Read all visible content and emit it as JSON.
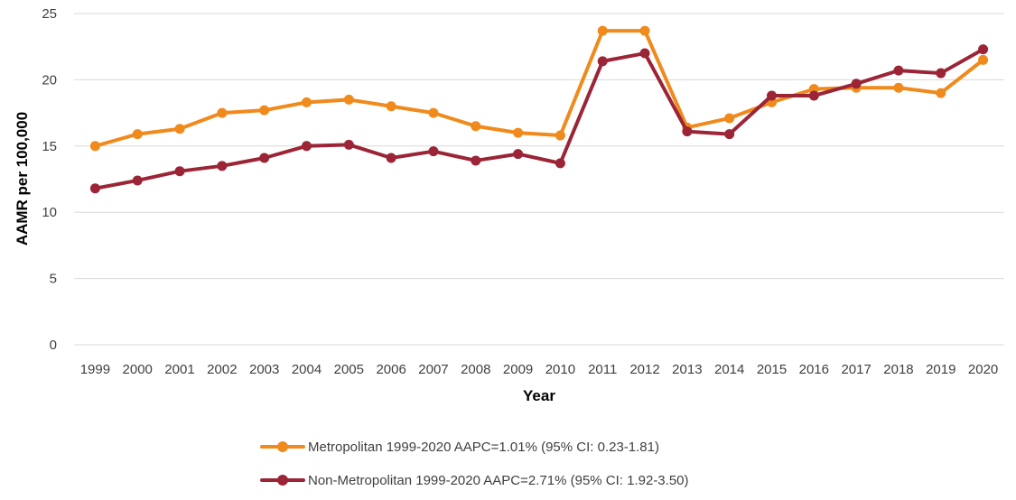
{
  "chart_data": {
    "type": "line",
    "title": "",
    "xlabel": "Year",
    "ylabel": "AAMR per 100,000",
    "ylim": [
      0,
      25
    ],
    "yticks": [
      0,
      5,
      10,
      15,
      20,
      25
    ],
    "grid": "horizontal",
    "legend_position": "bottom",
    "categories": [
      "1999",
      "2000",
      "2001",
      "2002",
      "2003",
      "2004",
      "2005",
      "2006",
      "2007",
      "2008",
      "2009",
      "2010",
      "2011",
      "2012",
      "2013",
      "2014",
      "2015",
      "2016",
      "2017",
      "2018",
      "2019",
      "2020"
    ],
    "series": [
      {
        "name": "Metropolitan 1999-2020 AAPC=1.01% (95% CI: 0.23-1.81)",
        "color": "#F08A1C",
        "values": [
          15.0,
          15.9,
          16.3,
          17.5,
          17.7,
          18.3,
          18.5,
          18.0,
          17.5,
          16.5,
          16.0,
          15.8,
          23.7,
          23.7,
          16.4,
          17.1,
          18.3,
          19.3,
          19.4,
          19.4,
          19.0,
          21.5
        ]
      },
      {
        "name": "Non-Metropolitan 1999-2020 AAPC=2.71% (95% CI: 1.92-3.50)",
        "color": "#9B2536",
        "values": [
          11.8,
          12.4,
          13.1,
          13.5,
          14.1,
          15.0,
          15.1,
          14.1,
          14.6,
          13.9,
          14.4,
          13.7,
          21.4,
          22.0,
          16.1,
          15.9,
          18.8,
          18.8,
          19.7,
          20.7,
          20.5,
          22.3
        ]
      }
    ]
  }
}
